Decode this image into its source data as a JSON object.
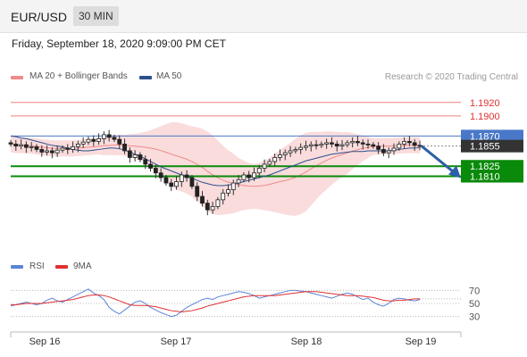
{
  "header": {
    "pair": "EUR/USD",
    "timeframe": "30 MIN"
  },
  "datetime": "Friday, September 18, 2020 9:09:00 PM CET",
  "legend": {
    "items": [
      {
        "label": "MA 20 + Bollinger Bands",
        "color": "#f08a8a"
      },
      {
        "label": "MA 50",
        "color": "#2c4f8e"
      }
    ],
    "credit": "Research © 2020 Trading Central"
  },
  "rsi_legend": {
    "items": [
      {
        "label": "RSI",
        "color": "#5b84d6"
      },
      {
        "label": "9MA",
        "color": "#e03030"
      }
    ]
  },
  "price_levels": [
    {
      "value": 1.192,
      "label": "1.1920",
      "style": "red-text"
    },
    {
      "value": 1.19,
      "label": "1.1900",
      "style": "red-text"
    },
    {
      "value": 1.187,
      "label": "1.1870",
      "style": "blue-box"
    },
    {
      "value": 1.1855,
      "label": "1.1855",
      "style": "dark-box"
    },
    {
      "value": 1.1825,
      "label": "1.1825",
      "style": "green-box"
    },
    {
      "value": 1.181,
      "label": "1.1810",
      "style": "green-box"
    }
  ],
  "x_ticks": [
    "Sep 16",
    "Sep 17",
    "Sep 18",
    "Sep 19"
  ],
  "rsi_ticks": [
    "70",
    "50",
    "30"
  ],
  "chart_data": {
    "type": "candlestick",
    "pair": "EUR/USD",
    "timeframe": "30 MIN",
    "ylim": [
      1.1695,
      1.1945
    ],
    "current_price": 1.1855,
    "resistance": [
      1.187,
      1.19,
      1.192
    ],
    "support": [
      1.1825,
      1.181
    ],
    "close_series": [
      1.1858,
      1.1855,
      1.1857,
      1.1853,
      1.1854,
      1.185,
      1.1846,
      1.1848,
      1.1845,
      1.1849,
      1.1852,
      1.185,
      1.1854,
      1.1858,
      1.1861,
      1.1865,
      1.1862,
      1.1866,
      1.1872,
      1.1868,
      1.1865,
      1.1858,
      1.1848,
      1.1838,
      1.1842,
      1.1835,
      1.1828,
      1.1822,
      1.1815,
      1.1808,
      1.18,
      1.1795,
      1.1802,
      1.1812,
      1.1808,
      1.1795,
      1.178,
      1.177,
      1.176,
      1.1765,
      1.1775,
      1.1785,
      1.179,
      1.18,
      1.1805,
      1.1812,
      1.1808,
      1.1815,
      1.1822,
      1.1828,
      1.1832,
      1.1838,
      1.1842,
      1.1845,
      1.1848,
      1.185,
      1.1853,
      1.1855,
      1.1857,
      1.1856,
      1.1858,
      1.186,
      1.1858,
      1.1855,
      1.1857,
      1.186,
      1.1862,
      1.186,
      1.1858,
      1.1857,
      1.1855,
      1.185,
      1.1845,
      1.1848,
      1.1852,
      1.1858,
      1.1862,
      1.186,
      1.1856,
      1.1855
    ],
    "ma50_series": [
      1.187,
      1.1869,
      1.1867,
      1.1866,
      1.1864,
      1.1862,
      1.186,
      1.1858,
      1.1856,
      1.1855,
      1.1854,
      1.1852,
      1.185,
      1.1849,
      1.1848,
      1.1848,
      1.1849,
      1.185,
      1.1851,
      1.1852,
      1.1852,
      1.1851,
      1.1849,
      1.1846,
      1.1843,
      1.184,
      1.1836,
      1.1832,
      1.1828,
      1.1824,
      1.1821,
      1.1818,
      1.1815,
      1.1812,
      1.181,
      1.1807,
      1.1804,
      1.1801,
      1.1799,
      1.1797,
      1.1796,
      1.1796,
      1.1797,
      1.1798,
      1.18,
      1.1802,
      1.1804,
      1.1806,
      1.1808,
      1.181,
      1.1812,
      1.1815,
      1.1818,
      1.1821,
      1.1824,
      1.1827,
      1.183,
      1.1833,
      1.1835,
      1.1837,
      1.1839,
      1.1841,
      1.1843,
      1.1844,
      1.1845,
      1.1846,
      1.1847,
      1.1847,
      1.1847,
      1.1848,
      1.1848,
      1.1848,
      1.1848,
      1.1848,
      1.1849,
      1.185,
      1.1851,
      1.1852,
      1.1852,
      1.1853
    ],
    "rsi": {
      "ylim": [
        20,
        80
      ],
      "levels": [
        70,
        50,
        30
      ],
      "rsi_series": [
        46,
        48,
        50,
        52,
        50,
        48,
        50,
        55,
        58,
        54,
        52,
        56,
        60,
        64,
        68,
        72,
        66,
        62,
        56,
        44,
        38,
        34,
        40,
        46,
        52,
        54,
        50,
        44,
        40,
        36,
        33,
        30,
        32,
        38,
        44,
        48,
        52,
        56,
        58,
        56,
        60,
        62,
        64,
        66,
        68,
        67,
        65,
        62,
        58,
        60,
        62,
        64,
        66,
        68,
        70,
        70,
        69,
        68,
        66,
        64,
        62,
        60,
        58,
        61,
        64,
        66,
        64,
        60,
        56,
        58,
        52,
        48,
        46,
        50,
        56,
        58,
        57,
        55,
        54,
        56
      ],
      "ma9_series": [
        48,
        48,
        49,
        50,
        50,
        50,
        50,
        51,
        52,
        53,
        54,
        55,
        56,
        58,
        60,
        62,
        63,
        63,
        62,
        60,
        57,
        54,
        51,
        48,
        47,
        47,
        47,
        46,
        45,
        43,
        41,
        39,
        38,
        37,
        38,
        39,
        41,
        43,
        46,
        48,
        50,
        52,
        54,
        56,
        58,
        60,
        61,
        62,
        62,
        62,
        62,
        62,
        63,
        64,
        65,
        66,
        67,
        68,
        68,
        68,
        67,
        66,
        65,
        64,
        63,
        62,
        62,
        62,
        61,
        60,
        59,
        57,
        55,
        54,
        54,
        55,
        55,
        56,
        57,
        57
      ]
    },
    "x_labels": [
      "Sep 16",
      "Sep 17",
      "Sep 18",
      "Sep 19"
    ]
  }
}
